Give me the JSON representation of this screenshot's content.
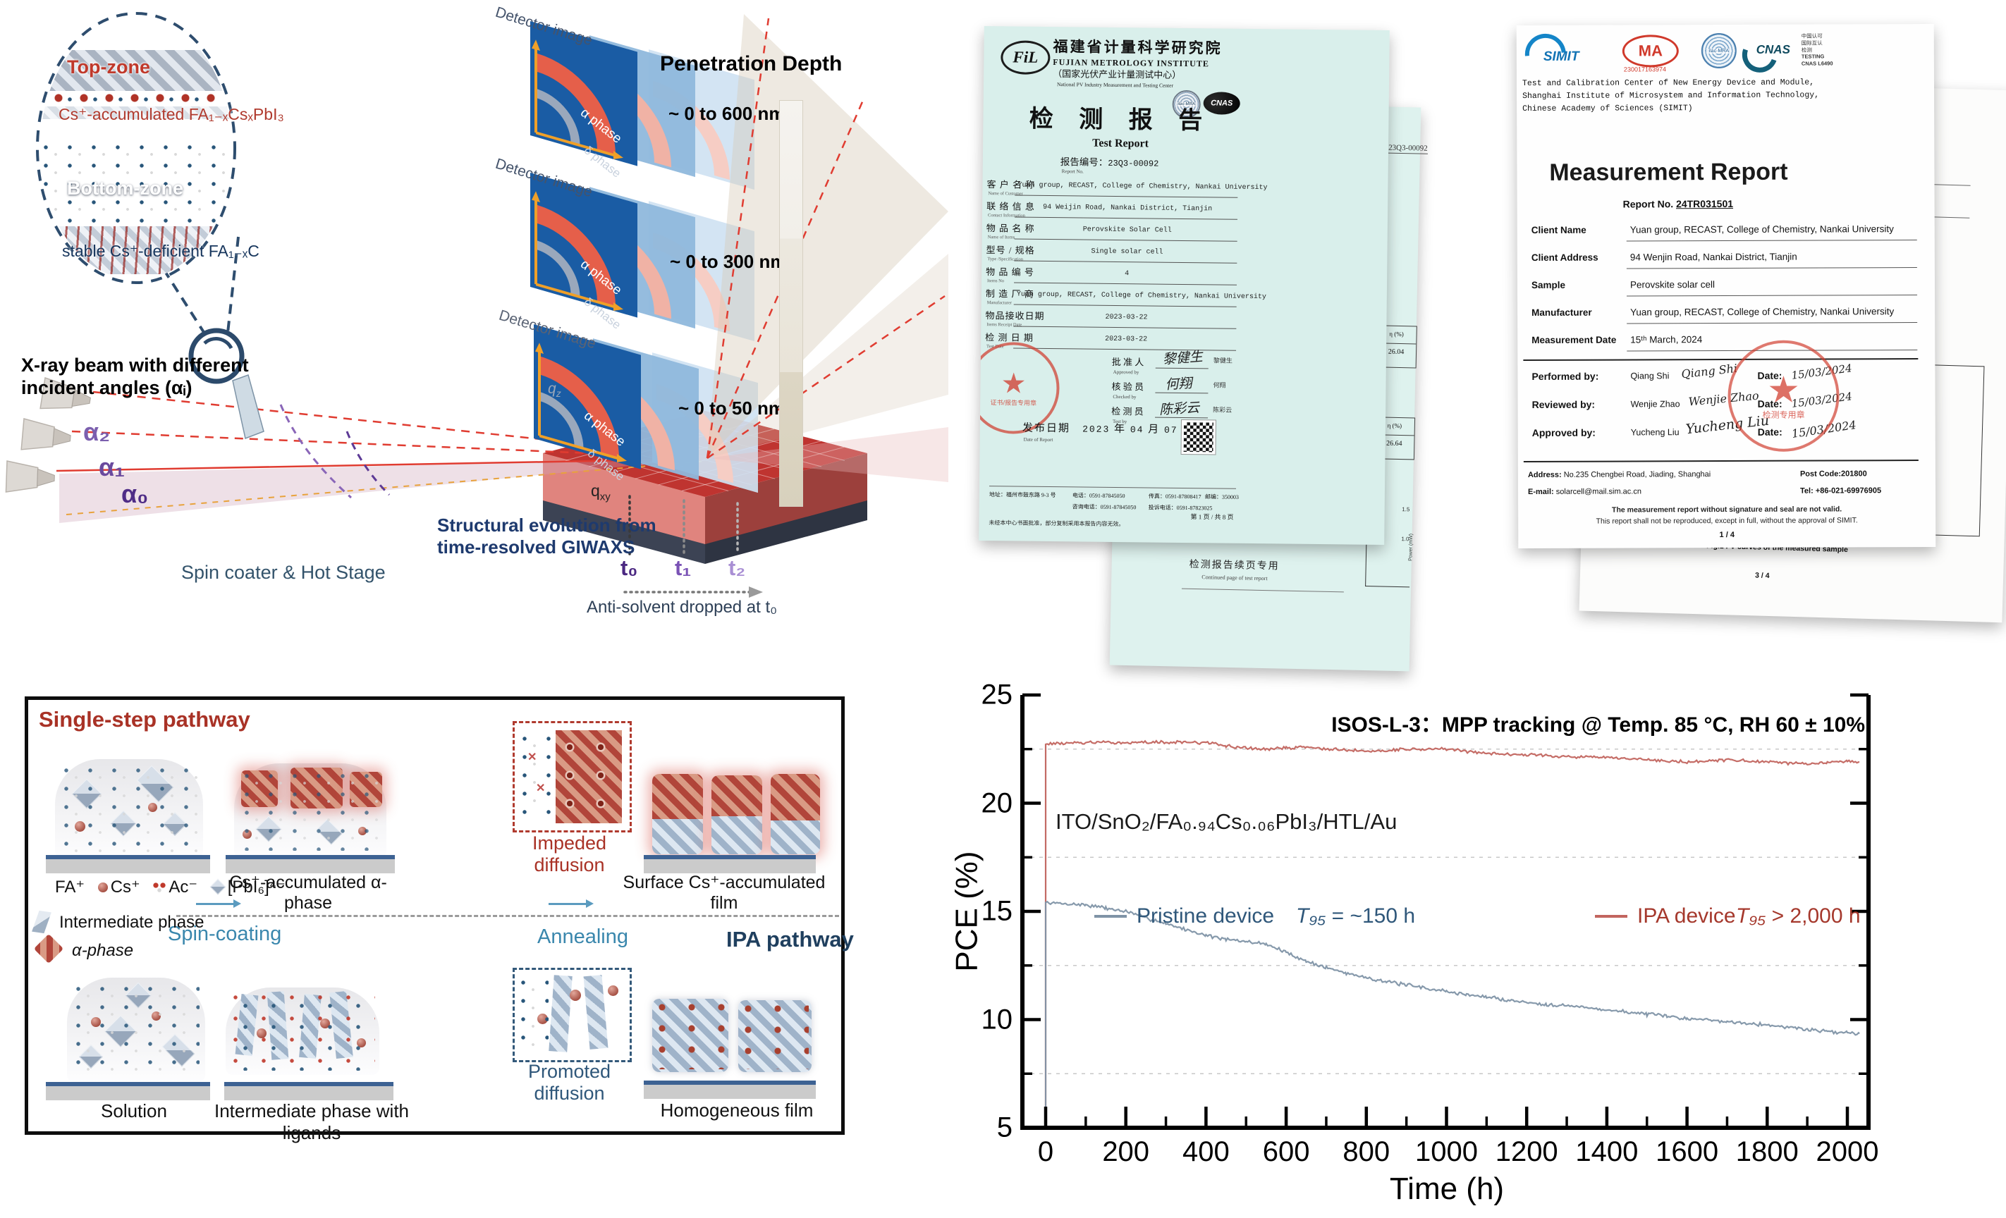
{
  "icons": {
    "star": "★",
    "cross": "✕",
    "arrow_right": "→"
  },
  "colors": {
    "accent_red": "#a93226",
    "accent_blue": "#3a87ad",
    "navy": "#1f3f5e",
    "chart_red": "#c2655f",
    "chart_blue": "#7f93a6",
    "stamp_red": "#d0392b",
    "detector_blue": "#1a5ca4",
    "arc_red": "#e55f4a",
    "arrow_orange": "#f0a028"
  },
  "giwaxs": {
    "inset": {
      "top_zone": "Top-zone",
      "accumulated": "Cs⁺-accumulated FA₁₋ₓCsₓPbI₃",
      "bottom_zone": "Bottom-zone",
      "deficient": "stable Cs⁺-deficient FA₁₋ₓC"
    },
    "beam_line1": "X-ray beam with different",
    "beam_line2": "incident angles (αᵢ)",
    "alpha2": "α₂",
    "alpha1": "α₁",
    "alpha0": "α₀",
    "spin_coater": "Spin coater & Hot Stage",
    "structural1": "Structural evolution from",
    "structural2": "time-resolved GIWAXS",
    "detector_label": "Detector image",
    "penetration_title": "Penetration Depth",
    "depth_600": "~ 0 to 600 nm",
    "depth_300": "~ 0 to 300 nm",
    "depth_50": "~ 0 to 50 nm",
    "alpha_phase": "α phase",
    "delta_phase": "δ phase",
    "qz_base": "q",
    "qz_sub": "z",
    "qxy_base": "q",
    "qxy_sub": "xy",
    "t0": "t₀",
    "t1": "t₁",
    "t2": "t₂",
    "antisolvent": "Anti-solvent dropped at t₀"
  },
  "cert_fujian": {
    "logo": "FiL",
    "org_cn": "福建省计量科学研究院",
    "org_en": "FUJIAN METROLOGY INSTITUTE",
    "sub_cn": "（国家光伏产业计量测试中心）",
    "sub_en": "National PV Industry Measurement and Testing Center",
    "badge_ilac": "ilac-MRA",
    "badge_cnas": "CNAS",
    "title_cn": "检 测 报 告",
    "title_en": "Test Report",
    "report_no_label": "报告编号：",
    "report_no": "23Q3-00092",
    "report_no_en": "Report No.",
    "rows": [
      {
        "cn": "客 户 名 称",
        "en": "Name of Customer",
        "value": "Yuan group, RECAST, College of Chemistry, Nankai University"
      },
      {
        "cn": "联 络 信 息",
        "en": "Contact Information",
        "value": "94 Weijin Road, Nankai District, Tianjin"
      },
      {
        "cn": "物 品 名 称",
        "en": "Name of Items",
        "value": "Perovskite Solar Cell"
      },
      {
        "cn": "型号 / 规格",
        "en": "Type /Specification",
        "value": "Single solar cell"
      },
      {
        "cn": "物 品 编 号",
        "en": "Items No",
        "value": "4"
      },
      {
        "cn": "制 造 厂 商",
        "en": "Manufacturer",
        "value": "Yuan group, RECAST, College of Chemistry, Nankai University"
      },
      {
        "cn": "物品接收日期",
        "en": "Items Receipt Date",
        "value": "2023-03-22"
      },
      {
        "cn": "检 测 日 期",
        "en": "Test Date",
        "value": "2023-03-22"
      }
    ],
    "sign_approved_cn": "批 准 人",
    "sign_approved_en": "Approved by",
    "sign_approved_name": "黎健生",
    "sign_checked_cn": "核 验 员",
    "sign_checked_en": "Checked by",
    "sign_checked_name": "何翔",
    "sign_test_cn": "检 测 员",
    "sign_test_en": "Test by",
    "sign_test_name": "陈彩云",
    "stamp_text": "证书/报告专用章",
    "date_label_cn": "发布日期",
    "date_label_en": "Date of Report",
    "date_year": "2023",
    "date_year_cn": "年",
    "date_month": "04",
    "date_month_cn": "月",
    "date_day": "07",
    "date_day_cn": "日",
    "footer_addr": "地址：福州市鼓东路 9-3 号",
    "footer_tel": "电话：0591-87845050",
    "footer_inquire": "咨询电话：0591-87845050",
    "footer_fax": "传真：0591-87808417",
    "footer_complaint": "投诉电话：0591-87823025",
    "footer_post": "邮编：350003",
    "footer_note": "未经本中心书面批准，部分复制采用本报告内容无效。",
    "page": "第 1 页 / 共 8 页",
    "back": {
      "report_no": "23Q3-00092",
      "eta1_label": "η (%)",
      "eta1": "26.04",
      "eta2_label": "η (%)",
      "eta2": "26.64",
      "axis": "Power (mW)",
      "tick1": "1.5",
      "tick2": "1.0",
      "cont_cn": "检测报告续页专用",
      "cont_en": "Continued page of test report"
    }
  },
  "cert_simit": {
    "logo_simit": "SIMIT",
    "logo_cma": "MA",
    "cma_no": "230017163974",
    "logo_ilac": "ilac-MRA",
    "logo_cnas": "CNAS",
    "side1": "中国认可",
    "side2": "国际互认",
    "side3": "检测",
    "side4": "TESTING",
    "side5": "CNAS L6490",
    "org1": "Test and Calibration Center of New Energy Device and Module,",
    "org2": "Shanghai Institute of Microsystem and Information Technology,",
    "org3": "Chinese Academy of Sciences (SIMIT)",
    "title": "Measurement Report",
    "report_label": "Report No.",
    "report_no": "24TR031501",
    "rows": [
      {
        "label": "Client Name",
        "value": "Yuan group, RECAST, College of Chemistry, Nankai University"
      },
      {
        "label": "Client Address",
        "value": "94 Wenjin Road, Nankai District, Tianjin"
      },
      {
        "label": "Sample",
        "value": "Perovskite solar cell"
      },
      {
        "label": "Manufacturer",
        "value": "Yuan group, RECAST, College of Chemistry, Nankai University"
      },
      {
        "label": "Measurement Date",
        "value": "15ᵗʰ March, 2024"
      }
    ],
    "performed_label": "Performed by:",
    "performed_name": "Qiang Shi",
    "performed_sig": "Qiang Shi",
    "reviewed_label": "Reviewed by:",
    "reviewed_name": "Wenjie Zhao",
    "reviewed_sig": "Wenjie Zhao",
    "approved_label": "Approved by:",
    "approved_name": "Yucheng Liu",
    "approved_sig": "Yucheng Liu",
    "date_label": "Date:",
    "date1": "15/03/2024",
    "date2": "15/03/2024",
    "date3": "15/03/2024",
    "stamp_text": "检测专用章",
    "addr_label": "Address:",
    "addr": "No.235 Chengbei Road, Jiading, Shanghai",
    "post": "Post Code:201800",
    "email_label": "E-mail:",
    "email": "solarcell@mail.sim.ac.cn",
    "tel": "Tel: +86-021-69976905",
    "note1": "The measurement report without signature and seal are not valid.",
    "note2": "This report shall not be reproduced, except in full, without the approval of SIMIT.",
    "page": "1 / 4",
    "back": {
      "report_no": "24TR031501",
      "frags": [
        "Scan",
        "(Isc)",
        "mA",
        "V",
        "mW",
        "mA",
        "V",
        "%",
        "%"
      ],
      "frag_micro": "microscope.",
      "fig": "Fig.1 I-V curves of the measured sample",
      "page": "3 / 4"
    }
  },
  "pathway": {
    "single_title": "Single-step pathway",
    "ipa_title": "IPA pathway",
    "spin": "Spin-coating",
    "anneal": "Annealing",
    "impeded": "Impeded diffusion",
    "promoted": "Promoted diffusion",
    "cap_cs_acc": "Cs⁺-accumulated α-phase",
    "cap_surface": "Surface Cs⁺-accumulated film",
    "cap_solution": "Solution",
    "cap_intermediate": "Intermediate phase with ligands",
    "cap_homo": "Homogeneous film",
    "leg_fa": "FA⁺",
    "leg_cs": "Cs⁺",
    "leg_ac": "Ac⁻",
    "leg_pbi": "[PbI₆]⁴⁻",
    "leg_inter": "Intermediate phase",
    "leg_alpha": "α-phase"
  },
  "chart": {
    "title": "ISOS-L-3：MPP tracking @ Temp. 85 °C, RH 60 ± 10%",
    "stack": "ITO/SnO₂/FA₀.₉₄Cs₀.₀₆PbI₃/HTL/Au",
    "xlabel": "Time (h)",
    "ylabel": "PCE (%)",
    "legend_pristine_name": "Pristine device",
    "legend_pristine_t": "T₉₅",
    "legend_pristine_val": " = ~150 h",
    "legend_ipa_name": "IPA device",
    "legend_ipa_t": "T₉₅",
    "legend_ipa_val": " > 2,000 h"
  },
  "chart_data": {
    "type": "line",
    "title": "ISOS-L-3：MPP tracking @ Temp. 85 °C, RH 60 ± 10%",
    "xlabel": "Time (h)",
    "ylabel": "PCE (%)",
    "xlim": [
      0,
      2050
    ],
    "ylim": [
      5,
      25
    ],
    "xticks": [
      0,
      200,
      400,
      600,
      800,
      1000,
      1200,
      1400,
      1600,
      1800,
      2000
    ],
    "yticks": [
      25,
      20,
      15,
      10,
      5
    ],
    "gridlines_y": [
      22.5,
      17.5,
      12.5,
      7.5
    ],
    "grid": "horizontal dashed at minor ticks",
    "legend_position": "inside middle",
    "series": [
      {
        "name": "Pristine device",
        "t95": "T95 = ~150 h",
        "color": "#7f93a6",
        "points": [
          [
            0,
            15.4
          ],
          [
            50,
            15.35
          ],
          [
            100,
            15.3
          ],
          [
            150,
            15.15
          ],
          [
            200,
            15.0
          ],
          [
            250,
            14.7
          ],
          [
            300,
            14.45
          ],
          [
            350,
            14.15
          ],
          [
            400,
            13.9
          ],
          [
            450,
            13.7
          ],
          [
            500,
            13.6
          ],
          [
            550,
            13.5
          ],
          [
            600,
            13.1
          ],
          [
            650,
            12.7
          ],
          [
            700,
            12.4
          ],
          [
            750,
            12.15
          ],
          [
            800,
            11.95
          ],
          [
            850,
            11.75
          ],
          [
            900,
            11.6
          ],
          [
            950,
            11.45
          ],
          [
            1000,
            11.3
          ],
          [
            1050,
            11.15
          ],
          [
            1100,
            11.05
          ],
          [
            1150,
            10.9
          ],
          [
            1200,
            10.8
          ],
          [
            1250,
            10.7
          ],
          [
            1300,
            10.65
          ],
          [
            1350,
            10.55
          ],
          [
            1400,
            10.45
          ],
          [
            1450,
            10.35
          ],
          [
            1500,
            10.25
          ],
          [
            1550,
            10.15
          ],
          [
            1600,
            10.05
          ],
          [
            1650,
            10.0
          ],
          [
            1700,
            9.9
          ],
          [
            1750,
            9.85
          ],
          [
            1800,
            9.75
          ],
          [
            1850,
            9.65
          ],
          [
            1900,
            9.55
          ],
          [
            1950,
            9.45
          ],
          [
            2000,
            9.4
          ],
          [
            2030,
            9.35
          ]
        ]
      },
      {
        "name": "IPA device",
        "t95": "T95 > 2,000 h",
        "color": "#c2655f",
        "points": [
          [
            0,
            22.75
          ],
          [
            100,
            22.8
          ],
          [
            200,
            22.8
          ],
          [
            300,
            22.82
          ],
          [
            400,
            22.8
          ],
          [
            450,
            22.65
          ],
          [
            500,
            22.55
          ],
          [
            550,
            22.5
          ],
          [
            600,
            22.55
          ],
          [
            650,
            22.6
          ],
          [
            700,
            22.5
          ],
          [
            800,
            22.4
          ],
          [
            900,
            22.5
          ],
          [
            1000,
            22.5
          ],
          [
            1100,
            22.3
          ],
          [
            1200,
            22.25
          ],
          [
            1300,
            22.15
          ],
          [
            1400,
            22.1
          ],
          [
            1500,
            22.0
          ],
          [
            1600,
            21.9
          ],
          [
            1700,
            22.0
          ],
          [
            1800,
            21.9
          ],
          [
            1900,
            21.8
          ],
          [
            1950,
            21.9
          ],
          [
            2000,
            21.95
          ],
          [
            2030,
            21.9
          ]
        ]
      }
    ]
  }
}
